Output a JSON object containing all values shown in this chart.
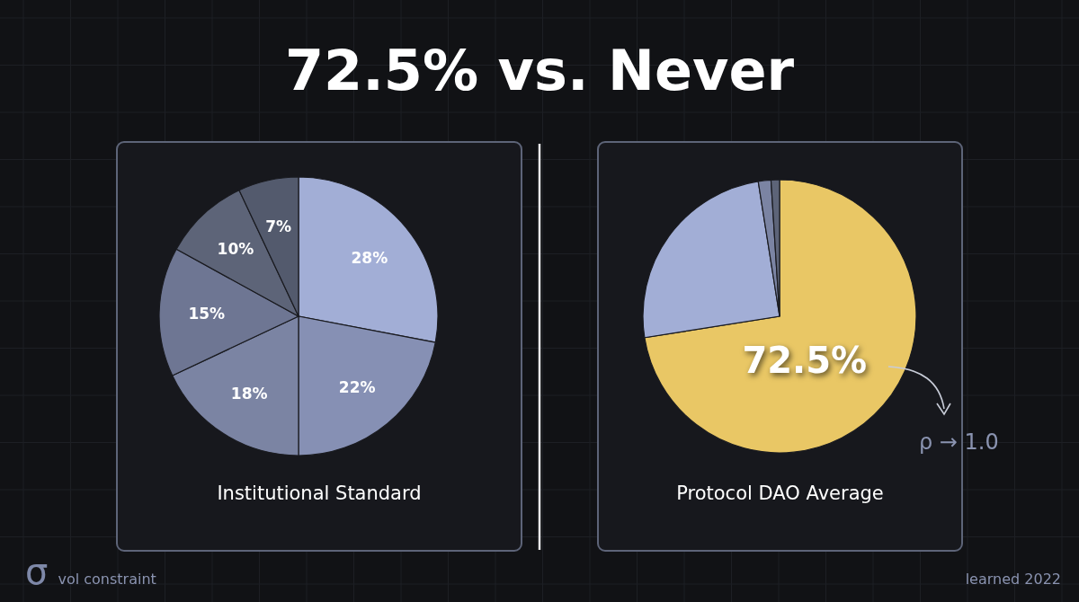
{
  "chart_data": [
    {
      "type": "pie",
      "title": "72.5% vs. Never",
      "xlabel": "Institutional Standard",
      "categories": [
        null,
        null,
        null,
        null,
        null,
        null
      ],
      "values": [
        28,
        22,
        18,
        15,
        10,
        7
      ],
      "colors": [
        "#a2aed6",
        "#8690b4",
        "#7b84a3",
        "#6e7693",
        "#5d6478",
        "#535a6d"
      ],
      "value_labels": [
        "28%",
        "22%",
        "18%",
        "15%",
        "10%",
        "7%"
      ],
      "annotations": [
        "σ vol constraint"
      ]
    },
    {
      "type": "pie",
      "xlabel": "Protocol DAO Average",
      "categories": [
        null,
        null,
        null,
        null
      ],
      "values": [
        72.5,
        25,
        1.5,
        1
      ],
      "colors": [
        "#e9c765",
        "#a2aed6",
        "#7b84a3",
        "#5d6478"
      ],
      "value_labels": [
        "72.5%",
        null,
        null,
        null
      ],
      "annotations": [
        "ρ → 1.0",
        "learned 2022"
      ]
    }
  ]
}
